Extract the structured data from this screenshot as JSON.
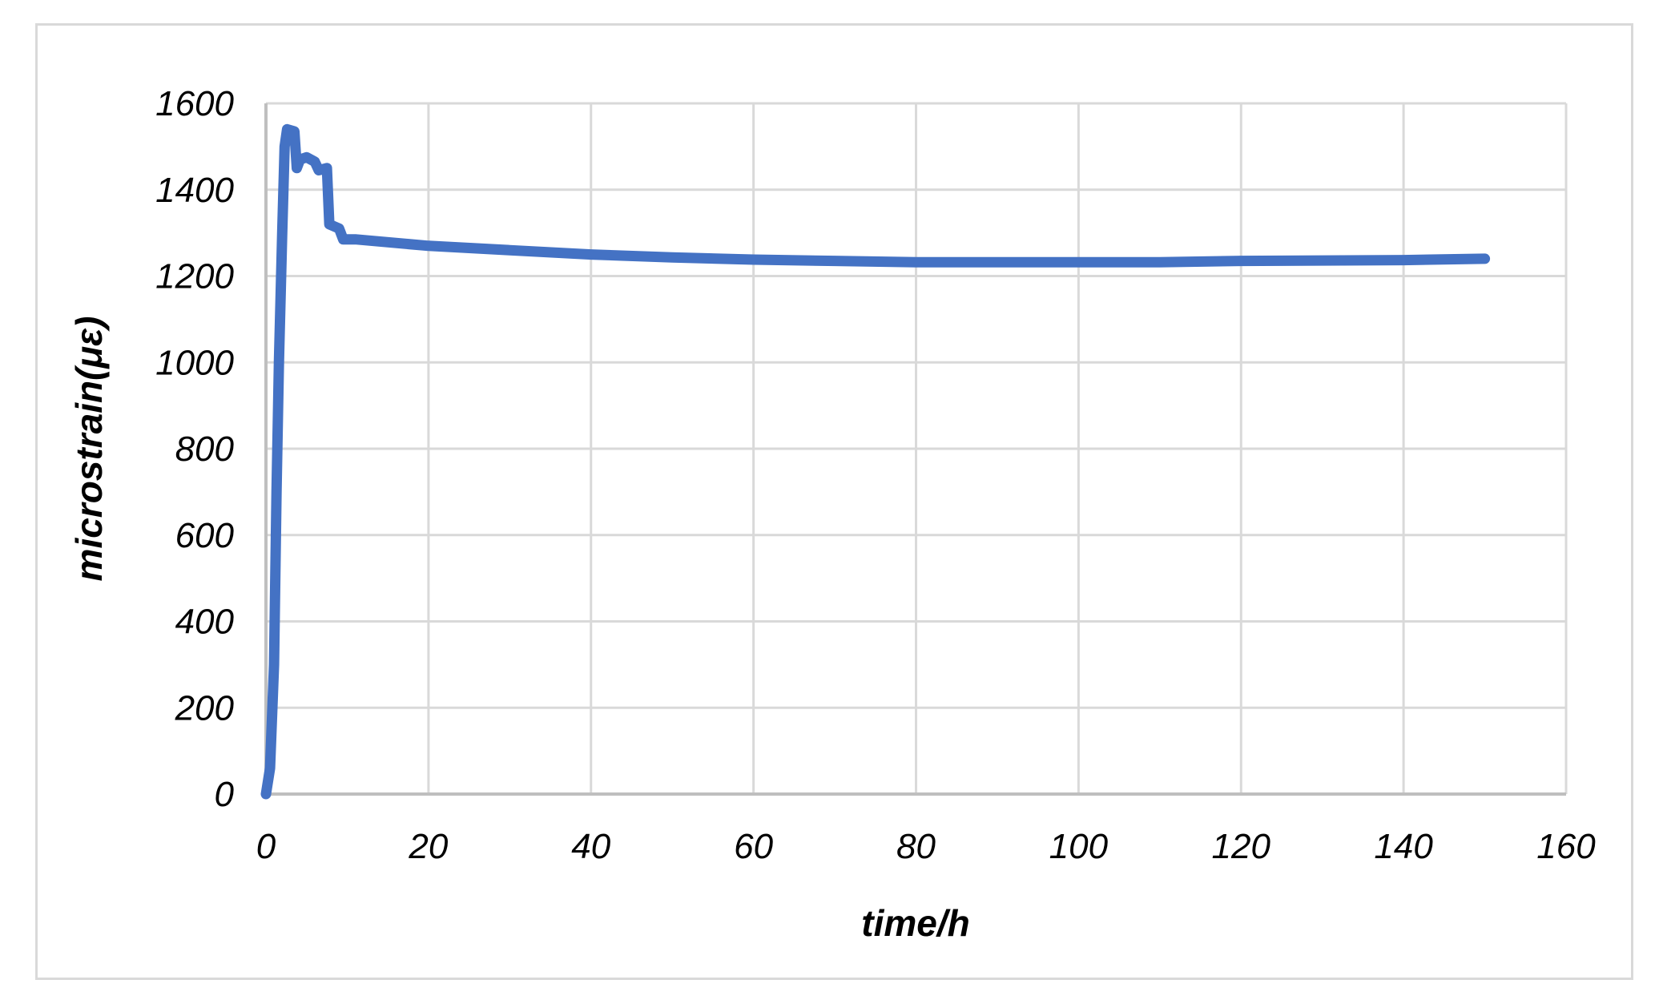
{
  "chart_data": {
    "type": "line",
    "title": "",
    "xlabel": "time/h",
    "ylabel": "microstrain(με)",
    "xlim": [
      0,
      160
    ],
    "ylim": [
      0,
      1600
    ],
    "xticks": [
      "0",
      "20",
      "40",
      "60",
      "80",
      "100",
      "120",
      "140",
      "160"
    ],
    "yticks": [
      "0",
      "200",
      "400",
      "600",
      "800",
      "1000",
      "1200",
      "1400",
      "1600"
    ],
    "grid": true,
    "series": [
      {
        "name": "microstrain",
        "color": "#4472c4",
        "x": [
          0,
          0.5,
          1,
          1.3,
          1.6,
          2,
          2.3,
          2.6,
          3.5,
          3.8,
          4.2,
          5,
          6,
          6.5,
          7.5,
          7.8,
          9,
          9.5,
          11,
          20,
          30,
          40,
          50,
          60,
          70,
          80,
          90,
          100,
          110,
          120,
          130,
          140,
          150
        ],
        "y": [
          0,
          60,
          300,
          700,
          1000,
          1300,
          1500,
          1540,
          1535,
          1450,
          1470,
          1475,
          1465,
          1445,
          1450,
          1320,
          1310,
          1285,
          1285,
          1270,
          1260,
          1250,
          1243,
          1238,
          1235,
          1232,
          1232,
          1232,
          1232,
          1235,
          1236,
          1237,
          1240
        ]
      }
    ]
  }
}
